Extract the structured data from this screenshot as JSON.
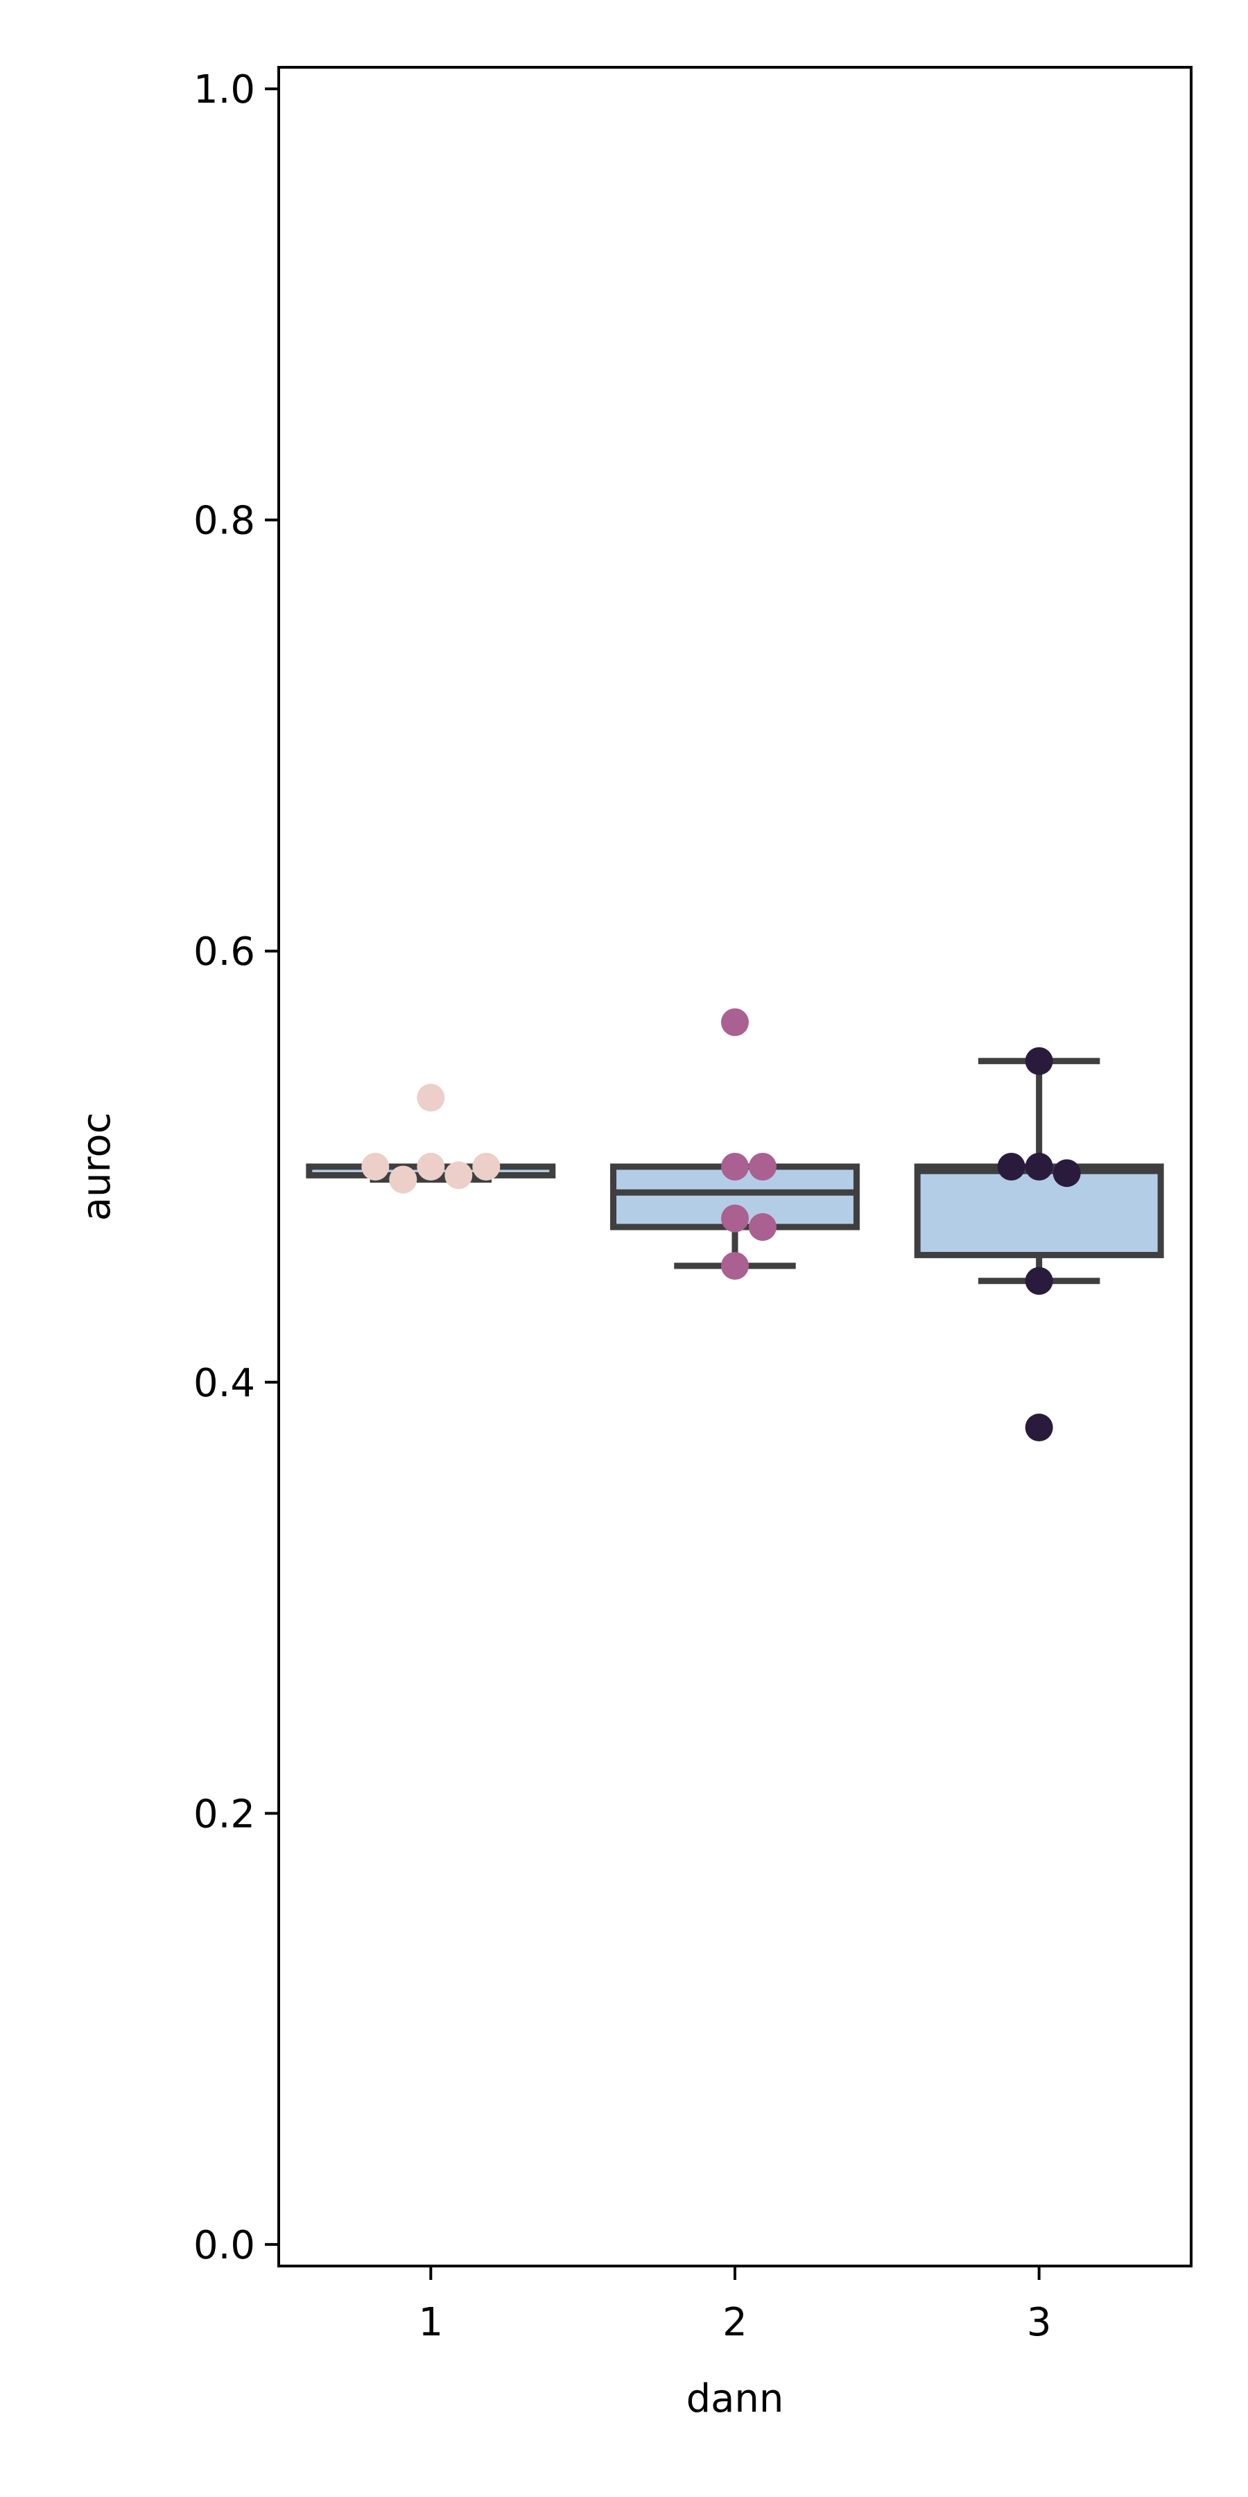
{
  "chart_data": {
    "type": "box",
    "title": "",
    "xlabel": "dann",
    "ylabel": "auroc",
    "ylim": [
      -0.01,
      1.01
    ],
    "grid": false,
    "yticks": [
      0.0,
      0.2,
      0.4,
      0.6,
      0.8,
      1.0
    ],
    "ytick_labels": [
      "0.0",
      "0.2",
      "0.4",
      "0.6",
      "0.8",
      "1.0"
    ],
    "categories": [
      "1",
      "2",
      "3"
    ],
    "box_color": "#b3cde6",
    "box_edge_color": "#3f3f3f",
    "groups": [
      {
        "category": "1",
        "whisker_low": 0.494,
        "q1": 0.496,
        "median": 0.5,
        "q3": 0.5,
        "whisker_high": 0.5,
        "points": [
          0.532,
          0.5,
          0.496,
          0.494,
          0.5,
          0.5
        ],
        "point_color": "#ebcfc8"
      },
      {
        "category": "2",
        "whisker_low": 0.454,
        "q1": 0.472,
        "median": 0.488,
        "q3": 0.5,
        "whisker_high": 0.5,
        "points": [
          0.567,
          0.5,
          0.5,
          0.476,
          0.472,
          0.454
        ],
        "point_color": "#aa6090"
      },
      {
        "category": "3",
        "whisker_low": 0.447,
        "q1": 0.459,
        "median": 0.498,
        "q3": 0.5,
        "whisker_high": 0.549,
        "points": [
          0.549,
          0.5,
          0.497,
          0.5,
          0.447,
          0.379
        ],
        "point_color": "#2a1b3d"
      }
    ]
  }
}
